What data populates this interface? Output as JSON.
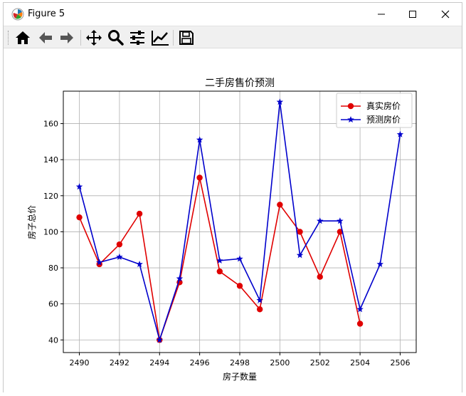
{
  "window": {
    "title": "Figure 5"
  },
  "toolbar": {
    "buttons": [
      {
        "name": "home-icon"
      },
      {
        "name": "back-icon"
      },
      {
        "name": "forward-icon"
      },
      {
        "name": "pan-icon"
      },
      {
        "name": "zoom-icon"
      },
      {
        "name": "subplots-icon"
      },
      {
        "name": "customize-icon"
      },
      {
        "name": "save-icon"
      }
    ]
  },
  "colors": {
    "true_series": "#e00000",
    "pred_series": "#0000cc",
    "grid": "#b0b0b0"
  },
  "chart_data": {
    "type": "line",
    "title": "二手房售价预测",
    "xlabel": "房子数量",
    "ylabel": "房子总价",
    "xlim": [
      2489.2,
      2506.8
    ],
    "ylim": [
      33,
      178
    ],
    "xticks": [
      2490,
      2492,
      2494,
      2496,
      2498,
      2500,
      2502,
      2504,
      2506
    ],
    "yticks": [
      40,
      60,
      80,
      100,
      120,
      140,
      160
    ],
    "grid": true,
    "legend_position": "top-right",
    "series": [
      {
        "name": "真实房价",
        "marker": "circle",
        "x": [
          2490,
          2491,
          2492,
          2493,
          2494,
          2495,
          2496,
          2497,
          2498,
          2499,
          2500,
          2501,
          2502,
          2503,
          2504
        ],
        "values": [
          108,
          82,
          93,
          110,
          40,
          72,
          130,
          78,
          70,
          57,
          115,
          100,
          75,
          100,
          49
        ]
      },
      {
        "name": "预测房价",
        "marker": "star",
        "x": [
          2490,
          2491,
          2492,
          2493,
          2494,
          2495,
          2496,
          2497,
          2498,
          2499,
          2500,
          2501,
          2502,
          2503,
          2504,
          2505,
          2506
        ],
        "values": [
          125,
          83,
          86,
          82,
          40,
          74,
          151,
          84,
          85,
          62,
          172,
          87,
          106,
          106,
          57,
          82,
          154
        ]
      }
    ]
  }
}
